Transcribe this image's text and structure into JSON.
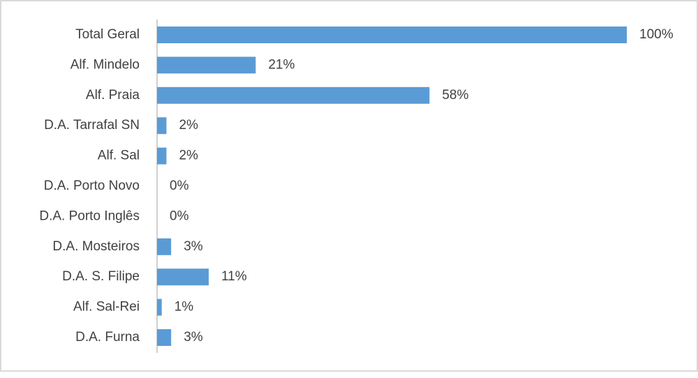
{
  "chart_data": {
    "type": "bar",
    "orientation": "horizontal",
    "categories": [
      "Total Geral",
      "Alf. Mindelo",
      "Alf. Praia",
      "D.A. Tarrafal SN",
      "Alf. Sal",
      "D.A. Porto Novo",
      "D.A. Porto Inglês",
      "D.A. Mosteiros",
      "D.A. S. Filipe",
      "Alf. Sal-Rei",
      "D.A. Furna"
    ],
    "values": [
      100,
      21,
      58,
      2,
      2,
      0,
      0,
      3,
      11,
      1,
      3
    ],
    "value_labels": [
      "100%",
      "21%",
      "58%",
      "2%",
      "2%",
      "0%",
      "0%",
      "3%",
      "11%",
      "1%",
      "3%"
    ],
    "color": "#5b9bd5"
  }
}
